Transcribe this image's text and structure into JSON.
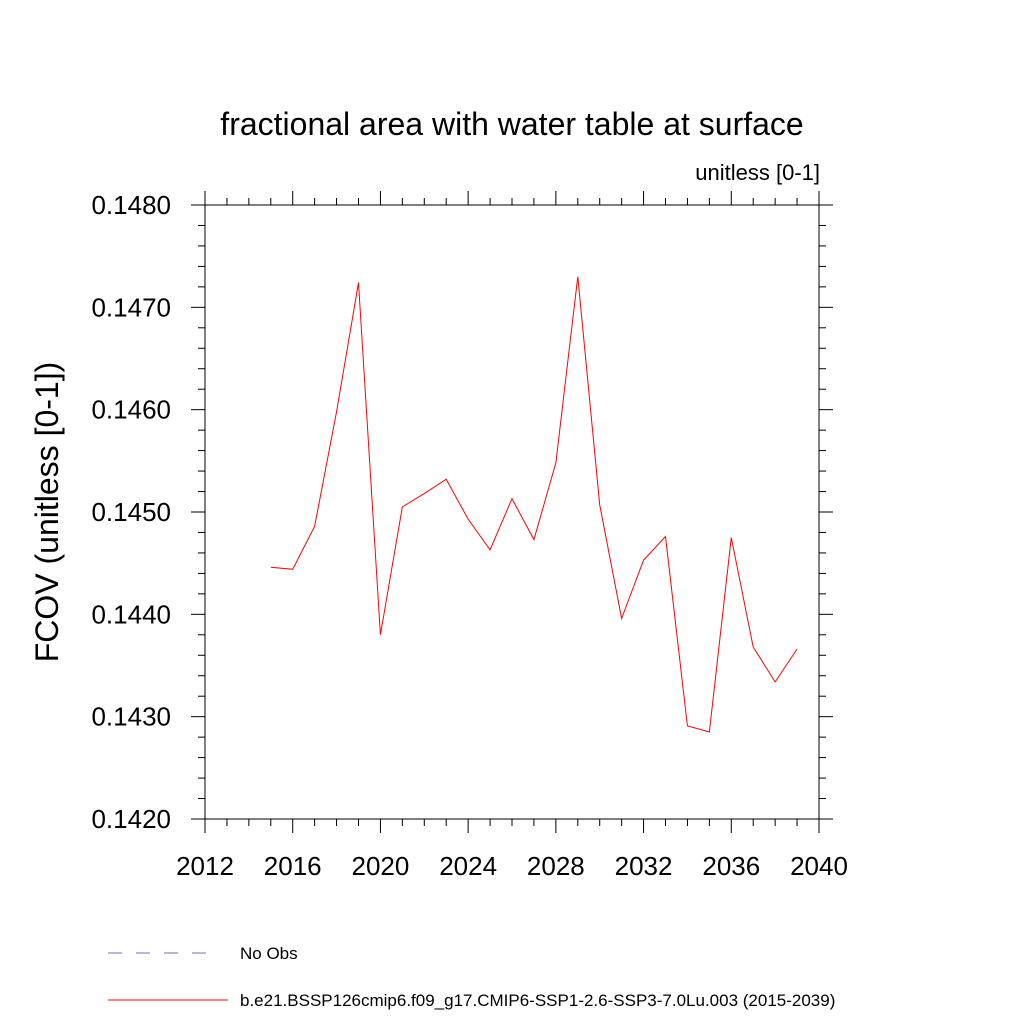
{
  "chart_data": {
    "type": "line",
    "title": "fractional area with water table at surface",
    "units_label": "unitless [0-1]",
    "ylabel": "FCOV  (unitless [0-1])",
    "xlabel": "",
    "xlim": [
      2012,
      2040
    ],
    "ylim": [
      0.142,
      0.148
    ],
    "x_ticks": [
      "2012",
      "2016",
      "2020",
      "2024",
      "2028",
      "2032",
      "2036",
      "2040"
    ],
    "y_ticks": [
      "0.1420",
      "0.1430",
      "0.1440",
      "0.1450",
      "0.1460",
      "0.1470",
      "0.1480"
    ],
    "grid": false,
    "legend_position": "bottom",
    "series": [
      {
        "name": "b.e21.BSSP126cmip6.f09_g17.CMIP6-SSP1-2.6-SSP3-7.0Lu.003 (2015-2039)",
        "color": "#ff0000",
        "line_style": "solid",
        "x": [
          2015,
          2016,
          2017,
          2018,
          2019,
          2020,
          2021,
          2022,
          2023,
          2024,
          2025,
          2026,
          2027,
          2028,
          2029,
          2030,
          2031,
          2032,
          2033,
          2034,
          2035,
          2036,
          2037,
          2038,
          2039
        ],
        "values": [
          0.14446,
          0.14444,
          0.14486,
          0.14598,
          0.14724,
          0.1438,
          0.14505,
          0.14518,
          0.14532,
          0.14493,
          0.14463,
          0.14513,
          0.14473,
          0.14548,
          0.1473,
          0.14507,
          0.14396,
          0.14453,
          0.14476,
          0.14291,
          0.14285,
          0.14475,
          0.14368,
          0.14334,
          0.14366
        ]
      }
    ],
    "legend": [
      {
        "label": "No Obs",
        "color": "#7a6fb0",
        "line_style": "dashed"
      },
      {
        "label": "b.e21.BSSP126cmip6.f09_g17.CMIP6-SSP1-2.6-SSP3-7.0Lu.003 (2015-2039)",
        "color": "#ff0000",
        "line_style": "solid"
      }
    ]
  }
}
